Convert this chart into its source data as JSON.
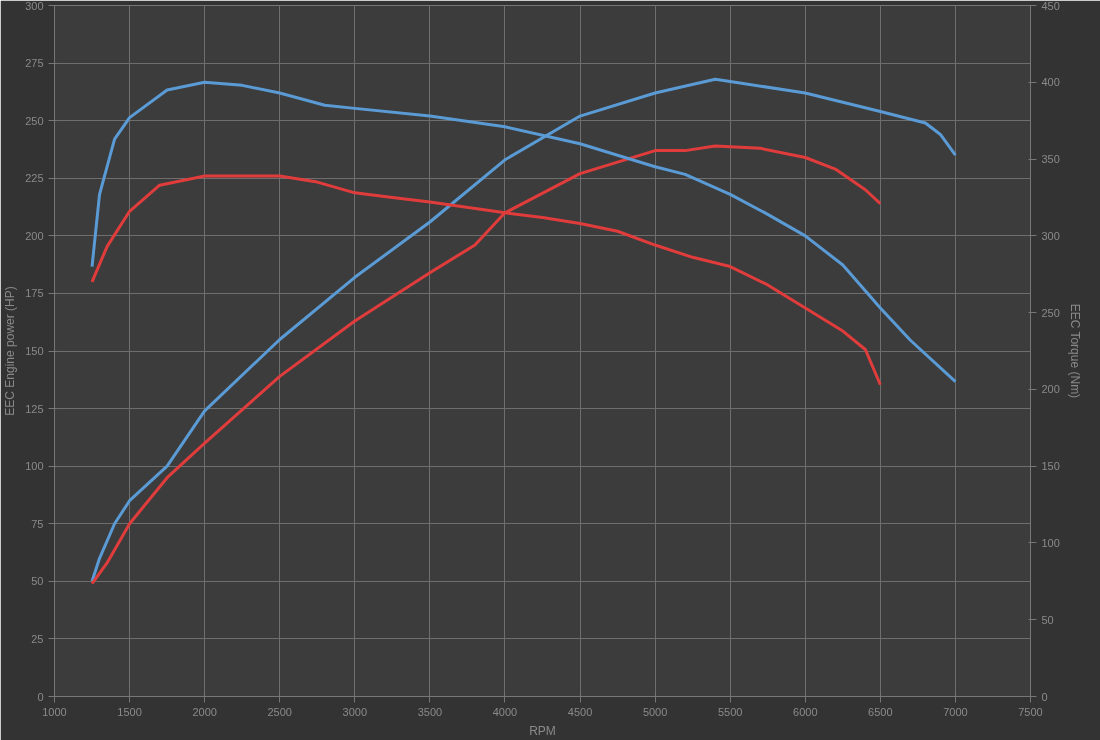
{
  "chart_data": {
    "type": "line",
    "xlabel": "RPM",
    "ylabel": "EEC Engine power (HP)",
    "y2label": "EEC Torque (Nm)",
    "xlim": [
      1000,
      7500
    ],
    "xticks": [
      1000,
      1500,
      2000,
      2500,
      3000,
      3500,
      4000,
      4500,
      5000,
      5500,
      6000,
      6500,
      7000,
      7500
    ],
    "ylim": [
      0,
      300
    ],
    "yticks": [
      0,
      25,
      50,
      75,
      100,
      125,
      150,
      175,
      200,
      225,
      250,
      275,
      300
    ],
    "y2lim": [
      0,
      450
    ],
    "y2ticks": [
      0,
      50,
      100,
      150,
      200,
      250,
      300,
      350,
      400,
      450
    ],
    "grid": true,
    "line_style": "solid",
    "marker": "none",
    "series": [
      {
        "color": "#5b9bd5",
        "x": [
          1250,
          1300,
          1400,
          1500,
          1750,
          2000,
          2500,
          3000,
          3500,
          4000,
          4500,
          5000,
          5400,
          5500,
          6000,
          6500,
          6800,
          6900,
          7000
        ],
        "values": [
          50,
          60,
          75,
          85,
          100,
          124,
          155,
          182,
          206,
          233,
          252,
          262,
          268,
          267,
          262,
          254,
          249,
          244,
          235
        ]
      },
      {
        "color": "#e03c3c",
        "x": [
          1250,
          1350,
          1500,
          1750,
          2000,
          2500,
          3000,
          3500,
          3800,
          4000,
          4500,
          5000,
          5200,
          5400,
          5700,
          6000,
          6200,
          6400,
          6500
        ],
        "values": [
          49,
          58,
          75,
          95,
          110,
          139,
          163,
          184,
          196,
          210,
          227,
          237,
          237,
          239,
          238,
          234,
          229,
          220,
          214
        ]
      },
      {
        "color": "#5b9bd5",
        "axis": "y2",
        "x": [
          1250,
          1300,
          1400,
          1500,
          1750,
          2000,
          2250,
          2500,
          2800,
          3000,
          3500,
          4000,
          4500,
          5000,
          5200,
          5500,
          5750,
          6000,
          6250,
          6500,
          6700,
          7000
        ],
        "values": [
          280,
          327,
          363,
          377,
          395,
          400,
          398,
          393,
          385,
          383,
          378,
          371,
          360,
          345,
          340,
          327,
          314,
          300,
          281,
          253,
          232,
          205
        ]
      },
      {
        "color": "#e03c3c",
        "axis": "y2",
        "x": [
          1250,
          1350,
          1500,
          1700,
          2000,
          2500,
          2750,
          3000,
          3250,
          3500,
          4000,
          4250,
          4500,
          4750,
          5000,
          5250,
          5500,
          5750,
          6000,
          6250,
          6400,
          6500
        ],
        "values": [
          270,
          293,
          316,
          333,
          339,
          339,
          335,
          328,
          325,
          322,
          315,
          312,
          308,
          303,
          294,
          286,
          280,
          268,
          253,
          238,
          226,
          203
        ]
      }
    ]
  }
}
